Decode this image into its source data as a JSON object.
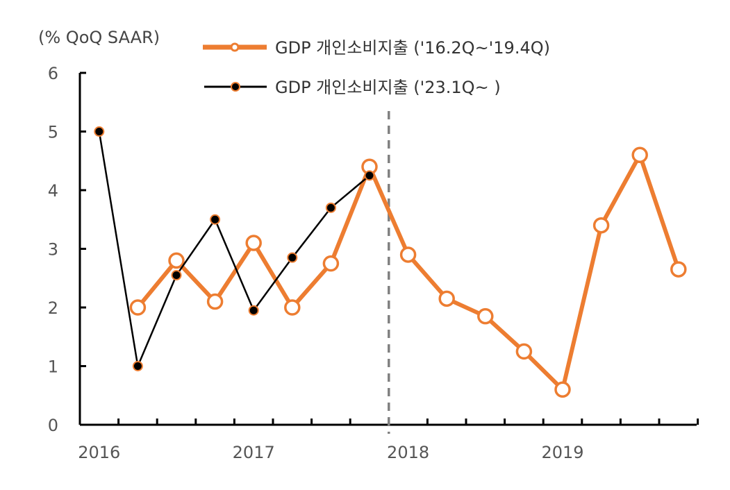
{
  "chart_data": {
    "type": "line",
    "ylabel": "(% QoQ SAAR)",
    "ylim": [
      0,
      6
    ],
    "yticks": [
      "0",
      "1",
      "2",
      "3",
      "4",
      "5",
      "6"
    ],
    "x_tick_labels": [
      "2016",
      "2017",
      "2018",
      "2019"
    ],
    "divider_after_quarter": 8,
    "series": [
      {
        "name": "GDP 개인소비지출 ('16.2Q~'19.4Q)",
        "color": "#ED7D31",
        "marker": "hollow-circle",
        "start_quarter": 1,
        "values": [
          2.0,
          2.8,
          2.1,
          3.1,
          2.0,
          2.75,
          4.4,
          2.9,
          2.15,
          1.85,
          1.25,
          0.6,
          3.4,
          4.6,
          2.65
        ]
      },
      {
        "name": "GDP 개인소비지출 ('23.1Q~ )",
        "color": "#000000",
        "marker": "filled-dot",
        "start_quarter": 0,
        "values": [
          5.0,
          1.0,
          2.55,
          3.5,
          1.95,
          2.85,
          3.7,
          4.25
        ]
      }
    ]
  }
}
